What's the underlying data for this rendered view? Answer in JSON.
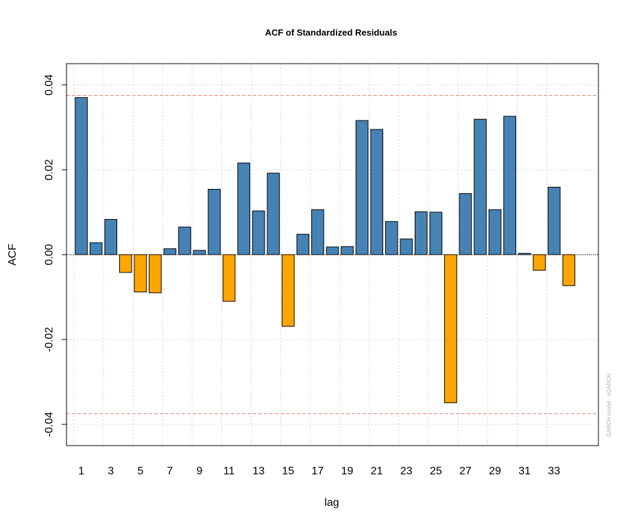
{
  "chart_data": {
    "type": "bar",
    "title": "ACF of Standardized Residuals",
    "xlabel": "lag",
    "ylabel": "ACF",
    "ylim": [
      -0.045,
      0.045
    ],
    "xlim": [
      -0.5,
      35.5
    ],
    "categories": [
      1,
      2,
      3,
      4,
      5,
      6,
      7,
      8,
      9,
      10,
      11,
      12,
      13,
      14,
      15,
      16,
      17,
      18,
      19,
      20,
      21,
      22,
      23,
      24,
      25,
      26,
      27,
      28,
      29,
      30,
      31,
      32,
      33,
      34
    ],
    "values": [
      0.037,
      0.0028,
      0.0083,
      -0.0042,
      -0.0088,
      -0.009,
      0.0014,
      0.0065,
      0.001,
      0.0154,
      -0.011,
      0.0216,
      0.0103,
      0.0192,
      -0.0169,
      0.0048,
      0.0106,
      0.0018,
      0.0019,
      0.0316,
      0.0295,
      0.0078,
      0.0037,
      0.0101,
      0.01,
      -0.0349,
      0.0144,
      0.0319,
      0.0106,
      0.0326,
      0.0003,
      -0.0037,
      0.0159,
      -0.0073
    ],
    "x_ticks": [
      1,
      3,
      5,
      7,
      9,
      11,
      13,
      15,
      17,
      19,
      21,
      23,
      25,
      27,
      29,
      31,
      33
    ],
    "x_tick_labels": [
      "1",
      "3",
      "5",
      "7",
      "9",
      "11",
      "13",
      "15",
      "17",
      "19",
      "21",
      "23",
      "25",
      "27",
      "29",
      "31",
      "33"
    ],
    "y_ticks": [
      -0.04,
      -0.02,
      0.0,
      0.02,
      0.04
    ],
    "y_tick_labels": [
      "-0.04",
      "-0.02",
      "0.00",
      "0.02",
      "0.04"
    ],
    "x_grid": [
      0,
      2,
      4,
      6,
      8,
      10,
      12,
      14,
      16,
      18,
      20,
      22,
      24,
      26,
      28,
      30,
      32
    ],
    "y_grid": [
      -0.04,
      -0.02,
      0.0,
      0.02,
      0.04
    ],
    "confidence_band": 0.0375,
    "grid": true,
    "colors": {
      "positive": "#4682b4",
      "negative": "#ffa500",
      "bar_border": "#000000",
      "conf_line": "#f08070",
      "grid": "#d3d3d3"
    },
    "watermark": "GARCH model : sGARCH"
  }
}
